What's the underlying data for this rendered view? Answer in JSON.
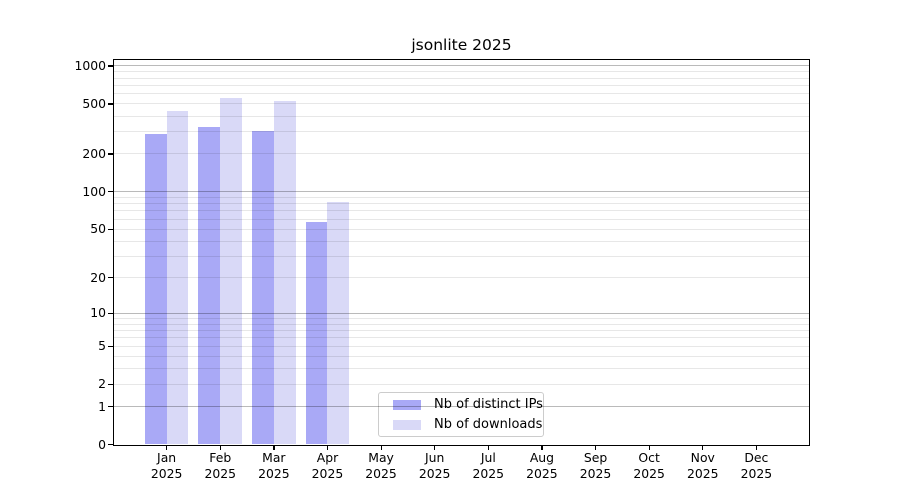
{
  "title": "jsonlite 2025",
  "chart_data": {
    "type": "bar",
    "title": "jsonlite 2025",
    "x_categories": [
      "Jan",
      "Feb",
      "Mar",
      "Apr",
      "May",
      "Jun",
      "Jul",
      "Aug",
      "Sep",
      "Oct",
      "Nov",
      "Dec"
    ],
    "x_year": "2025",
    "xlabel": "",
    "ylabel": "",
    "y_scale": "log10(value+1) with linear 0 baseline",
    "y_ticks": [
      1000,
      500,
      200,
      100,
      50,
      20,
      10,
      5,
      2,
      1,
      0
    ],
    "ylim": [
      0,
      1150
    ],
    "grid": "horizontal only; faint minor lines at 2-9, 20-90, 200-900; darker major lines at 1, 10, 100, 1000",
    "legend_position": "lower center inside plot",
    "series": [
      {
        "name": "Nb of distinct IPs",
        "color": "#a9a9f6",
        "values": [
          290,
          325,
          305,
          57,
          null,
          null,
          null,
          null,
          null,
          null,
          null,
          null
        ]
      },
      {
        "name": "Nb of downloads",
        "color": "#d9d9f7",
        "values": [
          440,
          555,
          530,
          82,
          null,
          null,
          null,
          null,
          null,
          null,
          null,
          null
        ]
      }
    ]
  }
}
